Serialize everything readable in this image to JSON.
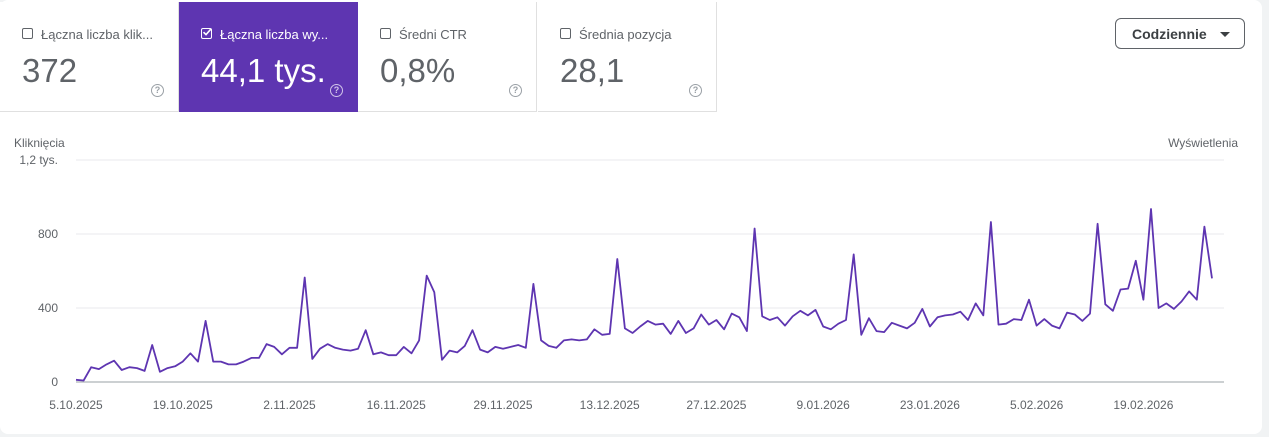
{
  "metrics": [
    {
      "label": "Łączna liczba klik...",
      "value": "372",
      "checked": false
    },
    {
      "label": "Łączna liczba wy...",
      "value": "44,1 tys.",
      "checked": true
    },
    {
      "label": "Średni CTR",
      "value": "0,8%",
      "checked": false
    },
    {
      "label": "Średnia pozycja",
      "value": "28,1",
      "checked": false
    }
  ],
  "help_glyph": "?",
  "dropdown": {
    "label": "Codziennie"
  },
  "colors": {
    "accent": "#5e35b1",
    "line": "#5e35b1"
  },
  "chart_data": {
    "type": "line",
    "left_axis_title": "Kliknięcia",
    "right_axis_title": "Wyświetlenia",
    "y_ticks": [
      {
        "v": 0,
        "label": "0"
      },
      {
        "v": 400,
        "label": "400"
      },
      {
        "v": 800,
        "label": "800"
      },
      {
        "v": 1200,
        "label": "1,2 tys."
      }
    ],
    "ylim": [
      0,
      1200
    ],
    "x_tick_labels": [
      "5.10.2025",
      "19.10.2025",
      "2.11.2025",
      "16.11.2025",
      "29.11.2025",
      "13.12.2025",
      "27.12.2025",
      "9.01.2026",
      "23.01.2026",
      "5.02.2026",
      "19.02.2026"
    ],
    "grid": true,
    "series": [
      {
        "values": [
          12,
          8,
          80,
          70,
          95,
          115,
          65,
          80,
          75,
          60,
          200,
          55,
          75,
          85,
          110,
          155,
          110,
          330,
          110,
          110,
          95,
          95,
          110,
          130,
          130,
          205,
          190,
          150,
          185,
          185,
          565,
          125,
          180,
          205,
          185,
          175,
          170,
          180,
          280,
          150,
          160,
          145,
          145,
          190,
          155,
          225,
          575,
          485,
          120,
          170,
          160,
          195,
          280,
          175,
          160,
          190,
          180,
          190,
          200,
          185,
          530,
          225,
          195,
          185,
          225,
          230,
          225,
          230,
          285,
          255,
          260,
          665,
          290,
          265,
          300,
          330,
          310,
          315,
          260,
          330,
          265,
          290,
          365,
          310,
          335,
          285,
          370,
          350,
          275,
          830,
          355,
          335,
          350,
          305,
          355,
          385,
          360,
          390,
          300,
          285,
          315,
          335,
          690,
          255,
          345,
          275,
          270,
          320,
          305,
          290,
          320,
          395,
          300,
          350,
          360,
          365,
          380,
          335,
          425,
          360,
          865,
          310,
          315,
          340,
          335,
          445,
          305,
          340,
          305,
          290,
          375,
          365,
          330,
          370,
          855,
          420,
          385,
          500,
          505,
          655,
          445,
          935,
          400,
          425,
          395,
          435,
          490,
          445,
          840,
          560
        ]
      }
    ]
  }
}
